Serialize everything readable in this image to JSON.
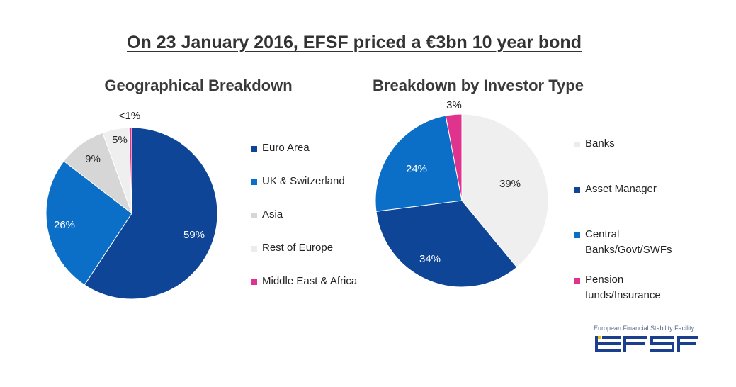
{
  "title": "On 23 January 2016, EFSF priced a €3bn 10 year bond",
  "chart_data": [
    {
      "type": "pie",
      "title": "Geographical Breakdown",
      "legend_position": "right",
      "slices": [
        {
          "label": "Euro Area",
          "value": 59,
          "display": "59%",
          "color": "#0e4596"
        },
        {
          "label": "UK & Switzerland",
          "value": 26,
          "display": "26%",
          "color": "#0b6fc7"
        },
        {
          "label": "Asia",
          "value": 9,
          "display": "9%",
          "color": "#d6d6d6"
        },
        {
          "label": "Rest of Europe",
          "value": 5,
          "display": "5%",
          "color": "#efefef"
        },
        {
          "label": "Middle East & Africa",
          "value": 0.5,
          "display": "<1%",
          "color": "#e0338d"
        }
      ]
    },
    {
      "type": "pie",
      "title": "Breakdown by Investor Type",
      "legend_position": "right",
      "slices": [
        {
          "label": "Banks",
          "value": 39,
          "display": "39%",
          "color": "#efefef"
        },
        {
          "label": "Asset Manager",
          "value": 34,
          "display": "34%",
          "color": "#0e4596"
        },
        {
          "label": "Central Banks/Govt/SWFs",
          "value": 24,
          "display": "24%",
          "color": "#0b6fc7"
        },
        {
          "label": "Pension funds/Insurance",
          "value": 3,
          "display": "3%",
          "color": "#e0338d"
        }
      ]
    }
  ],
  "logo": {
    "caption": "European Financial Stability Facility",
    "name": "EFSF",
    "colors": {
      "primary": "#1b3f8f",
      "accent": "#f2c200"
    }
  }
}
